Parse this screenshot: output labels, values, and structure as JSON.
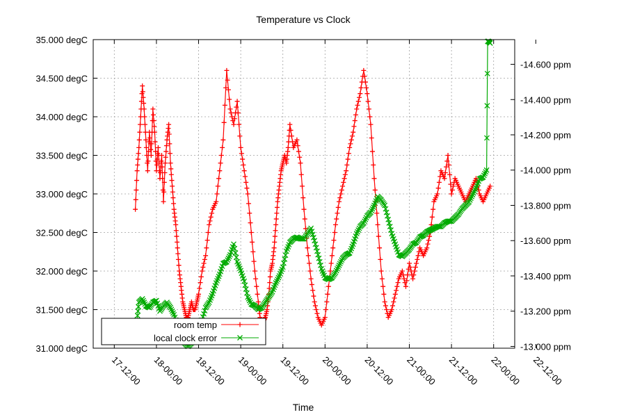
{
  "chart_data": {
    "type": "line",
    "title": "Temperature vs Clock",
    "xlabel": "Time",
    "ylabel": "",
    "y2label": "",
    "grid": true,
    "legend_position": "bottom-left",
    "x_ticks": [
      "17-12:00",
      "18-00:00",
      "18-12:00",
      "19-00:00",
      "19-12:00",
      "20-00:00",
      "20-12:00",
      "21-00:00",
      "21-12:00",
      "22-00:00",
      "22-12:00"
    ],
    "y_left_ticks": [
      "31.000 degC",
      "31.500 degC",
      "32.000 degC",
      "32.500 degC",
      "33.000 degC",
      "33.500 degC",
      "34.000 degC",
      "34.500 degC",
      "35.000 degC"
    ],
    "y_right_ticks": [
      "-13.000 ppm",
      "-13.200 ppm",
      "-13.400 ppm",
      "-13.600 ppm",
      "-13.800 ppm",
      "-14.000 ppm",
      "-14.200 ppm",
      "-14.400 ppm",
      "-14.600 ppm"
    ],
    "x_range_hours": [
      -6,
      114
    ],
    "y_left_range": [
      31.0,
      35.0
    ],
    "y_right_range": [
      -12.99,
      -14.74
    ],
    "x_unit_note": "hours after 17-12:00",
    "series": [
      {
        "name": "room temp",
        "axis": "left",
        "color": "#ff0000",
        "marker": "plus",
        "x": [
          6.0,
          6.5,
          7.0,
          7.5,
          8.0,
          8.5,
          9.0,
          9.5,
          10.0,
          10.5,
          11.0,
          11.5,
          12.0,
          12.5,
          13.0,
          13.5,
          14.0,
          14.5,
          15.0,
          15.5,
          16.0,
          16.5,
          17.0,
          17.5,
          18.0,
          18.5,
          19.0,
          19.5,
          20.0,
          20.5,
          21.0,
          21.5,
          22.0,
          22.5,
          23.0,
          23.5,
          24.0,
          25.0,
          26.0,
          27.0,
          28.0,
          29.0,
          30.0,
          31.0,
          32.0,
          33.0,
          34.0,
          35.0,
          36.0,
          37.0,
          38.0,
          39.0,
          40.0,
          41.0,
          41.5,
          42.0,
          42.5,
          43.0,
          43.5,
          44.0,
          44.5,
          45.0,
          45.5,
          46.0,
          46.5,
          47.0,
          47.5,
          48.0,
          48.5,
          49.0,
          49.5,
          50.0,
          51.0,
          52.0,
          53.0,
          54.0,
          55.0,
          56.0,
          57.0,
          58.0,
          59.0,
          60.0,
          61.0,
          62.0,
          63.0,
          64.0,
          65.0,
          66.0,
          67.0,
          68.0,
          69.0,
          70.0,
          71.0,
          72.0,
          73.0,
          74.0,
          75.0,
          76.0,
          77.0,
          78.0,
          79.0,
          80.0,
          81.0,
          82.0,
          83.0,
          84.0,
          85.0,
          86.0,
          87.0,
          88.0,
          89.0,
          90.0,
          91.0,
          92.0,
          93.0,
          94.0,
          95.0,
          96.0,
          97.0,
          98.0,
          99.0,
          100.0,
          101.0,
          102.0,
          103.0,
          104.0,
          105.0,
          106.0,
          107.0
        ],
        "y": [
          32.8,
          33.3,
          33.6,
          34.0,
          34.4,
          34.1,
          33.7,
          33.3,
          33.8,
          33.5,
          34.1,
          33.8,
          33.3,
          33.6,
          33.2,
          33.5,
          32.9,
          33.4,
          33.7,
          33.9,
          33.4,
          33.1,
          32.8,
          32.6,
          32.3,
          32.0,
          31.8,
          31.6,
          31.5,
          31.4,
          31.4,
          31.5,
          31.6,
          31.5,
          31.5,
          31.6,
          31.7,
          32.0,
          32.2,
          32.6,
          32.8,
          32.9,
          33.3,
          33.7,
          34.6,
          34.1,
          33.9,
          34.2,
          33.6,
          33.3,
          33.0,
          32.5,
          32.0,
          31.6,
          31.4,
          31.3,
          31.35,
          31.4,
          31.5,
          31.7,
          32.0,
          32.1,
          32.3,
          32.6,
          32.9,
          33.1,
          33.3,
          33.4,
          33.5,
          33.4,
          33.6,
          33.9,
          33.6,
          33.7,
          33.4,
          32.8,
          32.3,
          31.9,
          31.6,
          31.4,
          31.3,
          31.4,
          31.8,
          32.2,
          32.6,
          32.9,
          33.1,
          33.3,
          33.6,
          33.8,
          34.1,
          34.3,
          34.6,
          34.3,
          33.9,
          33.2,
          32.6,
          32.0,
          31.6,
          31.4,
          31.5,
          31.7,
          31.9,
          32.0,
          31.8,
          32.1,
          31.9,
          32.1,
          32.3,
          32.2,
          32.3,
          32.5,
          32.9,
          33.0,
          33.3,
          33.2,
          33.5,
          33.0,
          33.2,
          33.1,
          33.0,
          32.9,
          33.0,
          33.1,
          33.2,
          33.0,
          32.9,
          33.0,
          33.1
        ]
      },
      {
        "name": "local clock error",
        "axis": "right",
        "color": "#00aa00",
        "marker": "cross",
        "x": [
          6.0,
          6.5,
          7.0,
          8.0,
          9.0,
          10.0,
          11.0,
          12.0,
          13.0,
          14.0,
          15.0,
          16.0,
          17.0,
          18.0,
          19.0,
          20.0,
          21.0,
          22.0,
          23.0,
          24.0,
          25.0,
          26.0,
          27.0,
          28.0,
          29.0,
          30.0,
          31.0,
          32.0,
          33.0,
          34.0,
          35.0,
          36.0,
          37.0,
          38.0,
          39.0,
          40.0,
          41.0,
          42.0,
          43.0,
          44.0,
          45.0,
          46.0,
          47.0,
          48.0,
          49.0,
          50.0,
          51.0,
          52.0,
          53.0,
          54.0,
          55.0,
          56.0,
          57.0,
          58.0,
          59.0,
          60.0,
          61.0,
          62.0,
          63.0,
          64.0,
          65.0,
          66.0,
          67.0,
          68.0,
          69.0,
          70.0,
          71.0,
          72.0,
          73.0,
          74.0,
          75.0,
          76.0,
          77.0,
          78.0,
          79.0,
          80.0,
          81.0,
          82.0,
          83.0,
          84.0,
          85.0,
          86.0,
          87.0,
          88.0,
          89.0,
          90.0,
          91.0,
          92.0,
          93.0,
          94.0,
          95.0,
          96.0,
          97.0,
          98.0,
          99.0,
          100.0,
          101.0,
          102.0,
          103.0,
          104.0,
          105.0,
          106.0,
          106.3,
          106.6,
          107.0
        ],
        "y": [
          -13.03,
          -13.15,
          -13.25,
          -13.27,
          -13.23,
          -13.22,
          -13.25,
          -13.26,
          -13.2,
          -13.23,
          -13.25,
          -13.22,
          -13.18,
          -13.12,
          -13.06,
          -13.02,
          -13.0,
          -13.02,
          -13.06,
          -13.1,
          -13.15,
          -13.22,
          -13.25,
          -13.3,
          -13.36,
          -13.41,
          -13.47,
          -13.48,
          -13.52,
          -13.58,
          -13.48,
          -13.43,
          -13.37,
          -13.28,
          -13.24,
          -13.23,
          -13.21,
          -13.22,
          -13.25,
          -13.28,
          -13.31,
          -13.36,
          -13.4,
          -13.45,
          -13.54,
          -13.59,
          -13.61,
          -13.62,
          -13.61,
          -13.61,
          -13.64,
          -13.67,
          -13.6,
          -13.52,
          -13.44,
          -13.39,
          -13.38,
          -13.39,
          -13.42,
          -13.46,
          -13.5,
          -13.52,
          -13.53,
          -13.58,
          -13.64,
          -13.68,
          -13.7,
          -13.74,
          -13.76,
          -13.8,
          -13.85,
          -13.83,
          -13.8,
          -13.72,
          -13.64,
          -13.58,
          -13.52,
          -13.51,
          -13.53,
          -13.55,
          -13.58,
          -13.59,
          -13.62,
          -13.63,
          -13.65,
          -13.66,
          -13.67,
          -13.68,
          -13.68,
          -13.7,
          -13.71,
          -13.71,
          -13.73,
          -13.75,
          -13.78,
          -13.8,
          -13.82,
          -13.86,
          -13.9,
          -13.95,
          -13.96,
          -14.0,
          -14.73,
          -14.73,
          -14.72
        ]
      }
    ]
  }
}
